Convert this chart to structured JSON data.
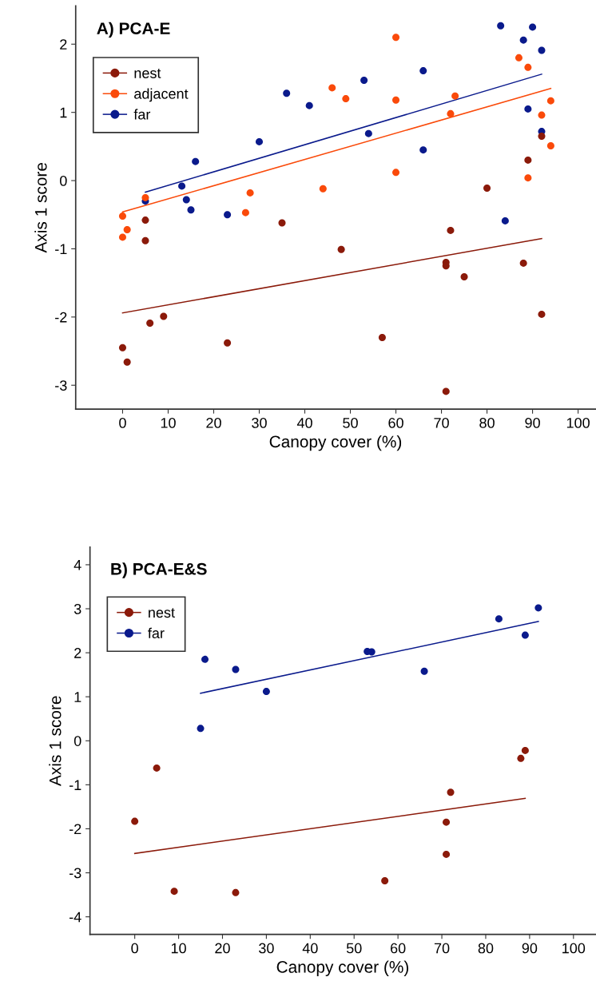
{
  "chart_data": [
    {
      "type": "scatter",
      "title": "A) PCA-E",
      "xlabel": "Canopy cover (%)",
      "ylabel": "Axis 1 score",
      "xlim": [
        -10.3,
        103.8
      ],
      "ylim": [
        -3.35,
        2.56
      ],
      "xticks": [
        0,
        10,
        20,
        30,
        40,
        50,
        60,
        70,
        80,
        90,
        100
      ],
      "yticks": [
        -3,
        -2,
        -1,
        0,
        1,
        2
      ],
      "grid": false,
      "legend": "top left",
      "series": [
        {
          "name": "nest",
          "marker": "circle",
          "color": "#8b1a0a",
          "x": [
            5,
            5,
            35,
            48,
            72,
            71,
            71,
            75,
            80,
            88,
            89,
            92,
            92,
            0,
            1,
            6,
            9,
            23,
            57,
            71
          ],
          "values": [
            -0.58,
            -0.88,
            -0.62,
            -1.01,
            -0.73,
            -1.2,
            -1.25,
            -1.41,
            -0.11,
            -1.21,
            0.3,
            0.65,
            -1.96,
            -2.45,
            -2.66,
            -2.09,
            -1.99,
            -2.38,
            -2.3,
            -3.09
          ]
        },
        {
          "name": "adjacent",
          "marker": "circle",
          "color": "#fa4a0a",
          "x": [
            0,
            0,
            1,
            5,
            27,
            28,
            44,
            46,
            49,
            60,
            60,
            60,
            72,
            73,
            87,
            89,
            89,
            92,
            94,
            94
          ],
          "values": [
            -0.52,
            -0.83,
            -0.72,
            -0.25,
            -0.47,
            -0.18,
            -0.12,
            1.36,
            1.2,
            2.1,
            1.18,
            0.12,
            0.98,
            1.24,
            1.8,
            1.66,
            0.04,
            0.96,
            1.17,
            0.51
          ]
        },
        {
          "name": "far",
          "marker": "circle",
          "color": "#0a1a8c",
          "x": [
            5,
            13,
            14,
            15,
            16,
            23,
            30,
            36,
            41,
            53,
            54,
            66,
            66,
            83,
            88,
            90,
            92,
            89,
            92,
            84
          ],
          "values": [
            -0.3,
            -0.08,
            -0.28,
            -0.43,
            0.28,
            -0.5,
            0.57,
            1.28,
            1.1,
            1.47,
            0.69,
            1.61,
            0.45,
            2.27,
            2.06,
            2.25,
            1.91,
            1.05,
            0.72,
            -0.59
          ]
        },
        {
          "type": "line",
          "color": "#8b1a0a",
          "x": [
            0,
            92
          ],
          "values": [
            -1.94,
            -0.85
          ]
        },
        {
          "type": "line",
          "color": "#fa4a0a",
          "x": [
            0,
            94
          ],
          "values": [
            -0.46,
            1.35
          ]
        },
        {
          "type": "line",
          "color": "#0a1a8c",
          "x": [
            5,
            92
          ],
          "values": [
            -0.17,
            1.56
          ]
        }
      ]
    },
    {
      "type": "scatter",
      "title": "B) PCA-E&S",
      "xlabel": "Canopy cover (%)",
      "ylabel": "Axis 1 score",
      "xlim": [
        -10.2,
        105
      ],
      "ylim": [
        -4.4,
        4.4
      ],
      "xticks": [
        0,
        10,
        20,
        30,
        40,
        50,
        60,
        70,
        80,
        90,
        100
      ],
      "yticks": [
        -4,
        -3,
        -2,
        -1,
        0,
        1,
        2,
        3,
        4
      ],
      "grid": false,
      "legend": "top left",
      "series": [
        {
          "name": "nest",
          "marker": "circle",
          "color": "#8b1a0a",
          "x": [
            0,
            5,
            9,
            23,
            57,
            71,
            71,
            72,
            88,
            89
          ],
          "values": [
            -1.83,
            -0.62,
            -3.42,
            -3.45,
            -3.18,
            -1.85,
            -2.58,
            -1.17,
            -0.4,
            -0.22
          ]
        },
        {
          "name": "far",
          "marker": "circle",
          "color": "#0a1a8c",
          "x": [
            15,
            16,
            23,
            30,
            53,
            54,
            66,
            83,
            89,
            92
          ],
          "values": [
            0.28,
            1.85,
            1.62,
            1.12,
            2.03,
            2.02,
            1.58,
            2.77,
            2.4,
            3.02
          ]
        },
        {
          "type": "line",
          "color": "#8b1a0a",
          "x": [
            0,
            89
          ],
          "values": [
            -2.56,
            -1.31
          ]
        },
        {
          "type": "line",
          "color": "#0a1a8c",
          "x": [
            15,
            92
          ],
          "values": [
            1.08,
            2.71
          ]
        }
      ]
    }
  ]
}
